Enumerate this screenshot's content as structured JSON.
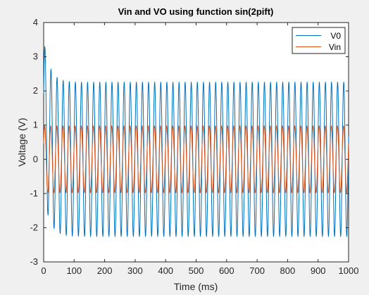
{
  "chart_data": {
    "type": "line",
    "title": "Vin and VO using function sin(2pift)",
    "xlabel": "Time (ms)",
    "ylabel": "Voltage (V)",
    "xlim": [
      0,
      1000
    ],
    "ylim": [
      -3,
      4
    ],
    "xticks": [
      "0",
      "100",
      "200",
      "300",
      "400",
      "500",
      "600",
      "700",
      "800",
      "900",
      "1000"
    ],
    "yticks": [
      "-3",
      "-2",
      "-1",
      "0",
      "1",
      "2",
      "3",
      "4"
    ],
    "grid": false,
    "legend_position": "top-right",
    "series": [
      {
        "name": "V0",
        "color": "#0072bd",
        "function": "damped transient plus steady sinusoid",
        "amplitude": 2.25,
        "frequency_per_ms": 0.05,
        "initial_peak": 3.35,
        "initial_trough": -2.2,
        "settle_ms": 60
      },
      {
        "name": "Vin",
        "color": "#d95319",
        "function": "sin(2*pi*f*t)",
        "amplitude": 0.98,
        "frequency_per_ms": 0.05
      }
    ]
  }
}
